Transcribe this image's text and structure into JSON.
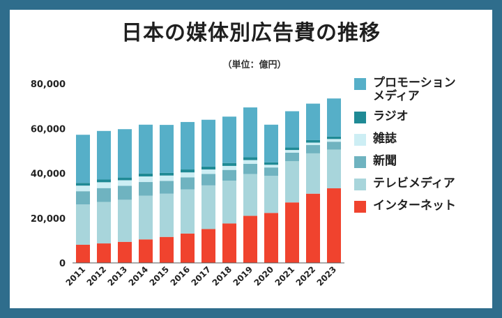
{
  "chart_data": {
    "type": "bar",
    "stacked": true,
    "title": "日本の媒体別広告費の推移",
    "subtitle": "（単位：億円）",
    "categories": [
      "2011",
      "2012",
      "2013",
      "2014",
      "2015",
      "2016",
      "2017",
      "2018",
      "2019",
      "2020",
      "2021",
      "2022",
      "2023"
    ],
    "ylim": [
      0,
      80000
    ],
    "yticks": [
      "0",
      "20,000",
      "40,000",
      "60,000",
      "80,000"
    ],
    "ytick_values": [
      0,
      20000,
      40000,
      60000,
      80000
    ],
    "grid": false,
    "legend_position": "right",
    "series": [
      {
        "name": "インターネット",
        "color": "#f0432e",
        "values": [
          8100,
          8700,
          9400,
          10500,
          11600,
          13100,
          15100,
          17600,
          21000,
          22300,
          27000,
          30900,
          33300
        ]
      },
      {
        "name": "テレビメディア",
        "color": "#a8d5db",
        "values": [
          18000,
          18500,
          18800,
          19500,
          19300,
          19700,
          19500,
          19100,
          18700,
          16600,
          18400,
          18000,
          17300
        ]
      },
      {
        "name": "新聞",
        "color": "#6fb3c0",
        "values": [
          5900,
          6200,
          6200,
          6100,
          5700,
          5400,
          5100,
          4800,
          4500,
          3700,
          3800,
          3700,
          3500
        ]
      },
      {
        "name": "雑誌",
        "color": "#cdeef4",
        "values": [
          2500,
          2600,
          2500,
          2500,
          2400,
          2200,
          2000,
          1800,
          1700,
          1200,
          1200,
          1100,
          1200
        ]
      },
      {
        "name": "ラジオ",
        "color": "#1f8a95",
        "values": [
          1200,
          1200,
          1200,
          1300,
          1200,
          1300,
          1300,
          1300,
          1300,
          1100,
          1100,
          1100,
          1100
        ]
      },
      {
        "name": "プロモーション\nメディア",
        "color": "#56afc8",
        "values": [
          21500,
          21700,
          21600,
          21800,
          21400,
          21200,
          20900,
          20700,
          22200,
          16800,
          16200,
          16300,
          17000
        ]
      }
    ]
  },
  "legend_order": [
    5,
    4,
    3,
    2,
    1,
    0
  ]
}
